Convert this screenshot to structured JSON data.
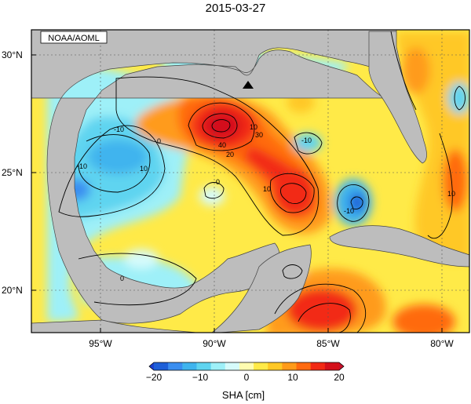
{
  "title": "2015-03-27",
  "source_label": "NOAA/AOML",
  "lat_labels": [
    "30°N",
    "25°N",
    "20°N"
  ],
  "lon_labels": [
    "95°W",
    "90°W",
    "85°W",
    "80°W"
  ],
  "colorbar": {
    "title": "SHA [cm]",
    "ticks": [
      "−20",
      "−10",
      "0",
      "10",
      "20"
    ],
    "colors": [
      "#1e5fd8",
      "#3a8ef0",
      "#3fb4ee",
      "#5fd4f0",
      "#9ef0f8",
      "#d6fbfb",
      "#fffcb0",
      "#ffea48",
      "#ffc825",
      "#ff9b1a",
      "#ff6a10",
      "#f22a14",
      "#d4101a"
    ]
  },
  "contour_labels": [
    "-10",
    "0",
    "10",
    "20",
    "30",
    "40",
    "-10",
    "10",
    "0",
    "-10",
    "10",
    "0",
    "-10",
    "10"
  ],
  "marker": "triangle-marker",
  "colors": {
    "land": "#bdbdbd",
    "background": "#ffffff"
  }
}
